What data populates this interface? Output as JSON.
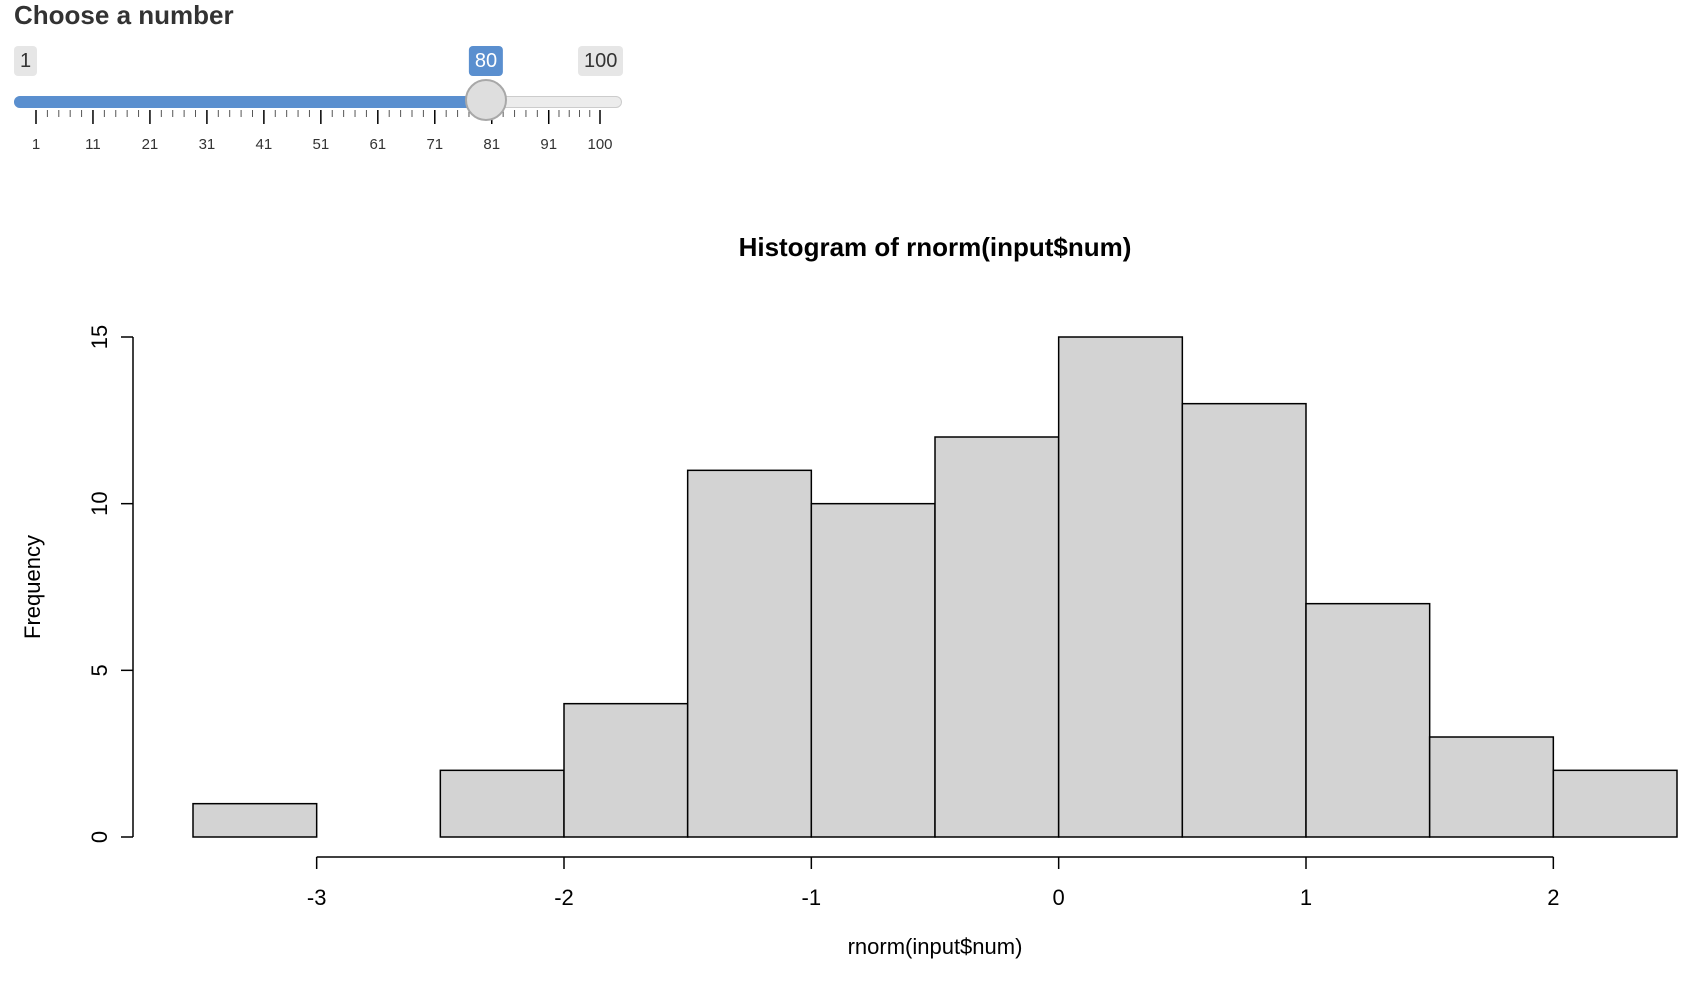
{
  "slider": {
    "label": "Choose a number",
    "min": 1,
    "max": 100,
    "value": 80,
    "min_label": "1",
    "max_label": "100",
    "value_label": "80",
    "ticks": [
      "1",
      "11",
      "21",
      "31",
      "41",
      "51",
      "61",
      "71",
      "81",
      "91",
      "100"
    ],
    "accent_color": "#5a8fcf"
  },
  "chart_data": {
    "type": "bar",
    "title": "Histogram of rnorm(input$num)",
    "xlabel": "rnorm(input$num)",
    "ylabel": "Frequency",
    "bin_edges": [
      -3.5,
      -3.0,
      -2.5,
      -2.0,
      -1.5,
      -1.0,
      -0.5,
      0.0,
      0.5,
      1.0,
      1.5,
      2.0,
      2.5
    ],
    "values": [
      1,
      0,
      2,
      4,
      11,
      10,
      12,
      15,
      13,
      7,
      3,
      2
    ],
    "xticks": [
      -3,
      -2,
      -1,
      0,
      1,
      2
    ],
    "xtick_labels": [
      "-3",
      "-2",
      "-1",
      "0",
      "1",
      "2"
    ],
    "yticks": [
      0,
      5,
      10,
      15
    ],
    "ytick_labels": [
      "0",
      "5",
      "10",
      "15"
    ],
    "xlim": [
      -3.5,
      2.5
    ],
    "ylim": [
      0,
      15
    ],
    "bar_color": "#d3d3d3",
    "grid": false
  }
}
